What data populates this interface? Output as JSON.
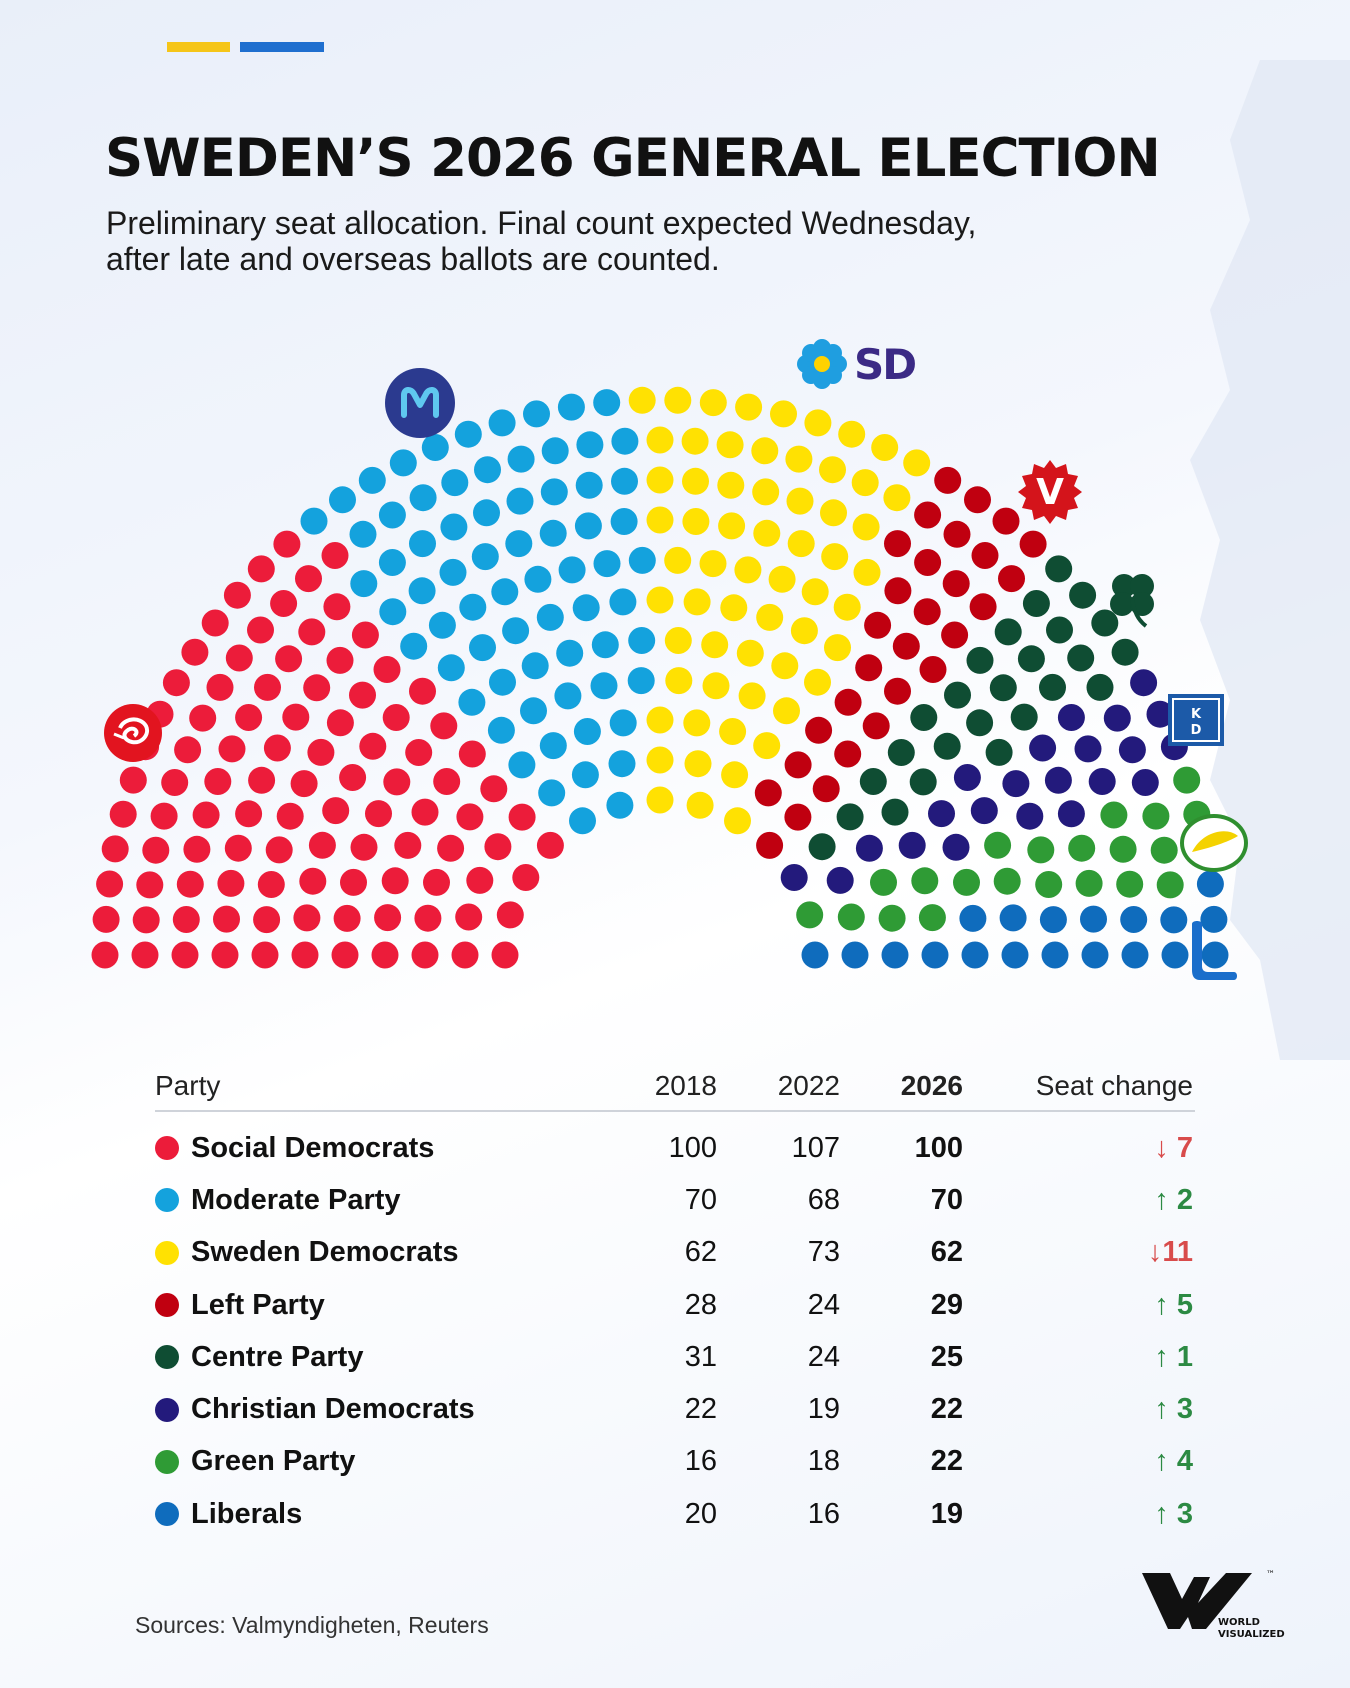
{
  "header": {
    "title": "SWEDEN’S 2026 GENERAL ELECTION",
    "subtitle_line1": "Preliminary seat allocation. Final count expected Wednesday,",
    "subtitle_line2": "after late and overseas ballots are counted."
  },
  "colors": {
    "accent_yellow": "#f5c518",
    "accent_blue": "#1f6fcf"
  },
  "logos": {
    "social_democrats": "rose-icon",
    "moderate_party": "m-icon",
    "sweden_democrats": "flower-icon",
    "sweden_democrats_text": "SD",
    "left_party": "v-icon",
    "left_party_text": "V",
    "centre_party": "clover-icon",
    "christian_democrats": "kd-icon",
    "christian_democrats_text_top": "K",
    "christian_democrats_text_bottom": "D",
    "green_party": "dandelion-icon",
    "liberals": "l-icon"
  },
  "table": {
    "headers": {
      "party": "Party",
      "y2018": "2018",
      "y2022": "2022",
      "y2026": "2026",
      "change": "Seat change"
    },
    "rows": [
      {
        "party": "Social Democrats",
        "color": "#ec1c3a",
        "y2018": "100",
        "y2022": "107",
        "y2026": "100",
        "change": "↓ 7",
        "direction": "down"
      },
      {
        "party": "Moderate Party",
        "color": "#14a2dd",
        "y2018": "70",
        "y2022": "68",
        "y2026": "70",
        "change": "↑ 2",
        "direction": "up"
      },
      {
        "party": "Sweden Democrats",
        "color": "#ffe102",
        "y2018": "62",
        "y2022": "73",
        "y2026": "62",
        "change": "↓11",
        "direction": "down"
      },
      {
        "party": "Left Party",
        "color": "#c00010",
        "y2018": "28",
        "y2022": "24",
        "y2026": "29",
        "change": "↑ 5",
        "direction": "up"
      },
      {
        "party": "Centre Party",
        "color": "#0f4d33",
        "y2018": "31",
        "y2022": "24",
        "y2026": "25",
        "change": "↑  1",
        "direction": "up"
      },
      {
        "party": "Christian Democrats",
        "color": "#231a7c",
        "y2018": "22",
        "y2022": "19",
        "y2026": "22",
        "change": "↑ 3",
        "direction": "up"
      },
      {
        "party": "Green Party",
        "color": "#2f9b35",
        "y2018": "16",
        "y2022": "18",
        "y2026": "22",
        "change": "↑ 4",
        "direction": "up"
      },
      {
        "party": "Liberals",
        "color": "#0f6cbd",
        "y2018": "20",
        "y2022": "16",
        "y2026": "19",
        "change": "↑ 3",
        "direction": "up"
      }
    ]
  },
  "chart_data": {
    "type": "parliament",
    "total_seats": 349,
    "series": [
      {
        "name": "Social Democrats",
        "seats": 100,
        "color": "#ec1c3a"
      },
      {
        "name": "Moderate Party",
        "seats": 70,
        "color": "#14a2dd"
      },
      {
        "name": "Sweden Democrats",
        "seats": 62,
        "color": "#ffe102"
      },
      {
        "name": "Left Party",
        "seats": 29,
        "color": "#c00010"
      },
      {
        "name": "Centre Party",
        "seats": 25,
        "color": "#0f4d33"
      },
      {
        "name": "Christian Democrats",
        "seats": 22,
        "color": "#231a7c"
      },
      {
        "name": "Green Party",
        "seats": 22,
        "color": "#2f9b35"
      },
      {
        "name": "Liberals",
        "seats": 19,
        "color": "#0f6cbd"
      }
    ]
  },
  "footer": {
    "sources": "Sources: Valmyndigheten, Reuters",
    "brand_line1": "WORLD",
    "brand_line2": "VISUALIZED",
    "brand_tm": "™"
  }
}
